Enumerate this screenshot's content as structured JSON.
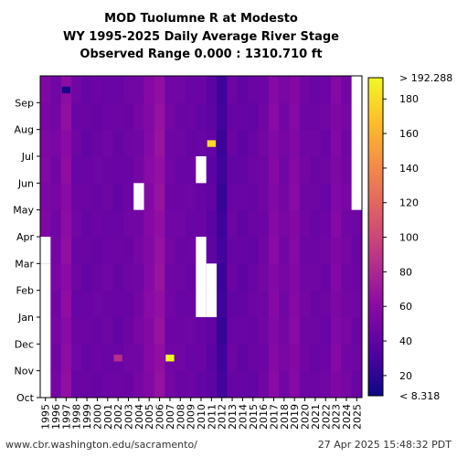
{
  "chart_data": {
    "type": "heatmap",
    "title_lines": [
      "MOD Tuolumne R at Modesto",
      "WY 1995-2025 Daily Average River Stage",
      "Observed Range 0.000 : 1310.710 ft"
    ],
    "x_categories": [
      "1995",
      "1996",
      "1997",
      "1998",
      "1999",
      "2000",
      "2001",
      "2002",
      "2003",
      "2004",
      "2005",
      "2006",
      "2007",
      "2008",
      "2009",
      "2010",
      "2011",
      "2012",
      "2013",
      "2014",
      "2015",
      "2016",
      "2017",
      "2018",
      "2019",
      "2020",
      "2021",
      "2022",
      "2023",
      "2024",
      "2025"
    ],
    "y_months": [
      "Oct",
      "Nov",
      "Dec",
      "Jan",
      "Feb",
      "Mar",
      "Apr",
      "May",
      "Jun",
      "Jul",
      "Aug",
      "Sep"
    ],
    "colorbar": {
      "range": [
        8.318,
        192.288
      ],
      "ticks": [
        20,
        40,
        60,
        80,
        100,
        120,
        140,
        160,
        180
      ],
      "max_label": "> 192.288",
      "min_label": "< 8.318",
      "colormap": "plasma"
    },
    "year_column_values": [
      54,
      50,
      62,
      46,
      44,
      45,
      46,
      44,
      46,
      50,
      58,
      66,
      48,
      46,
      45,
      44,
      40,
      26,
      44,
      42,
      44,
      48,
      58,
      50,
      58,
      48,
      46,
      46,
      56,
      50,
      46
    ],
    "notable_cells": [
      {
        "year": "2007",
        "month": "Nov",
        "value": 192
      },
      {
        "year": "2011",
        "month": "Jul",
        "value": 180
      },
      {
        "year": "2002",
        "month": "Nov",
        "value": 85
      },
      {
        "year": "1997",
        "month": "Sep",
        "value": 12
      }
    ],
    "missing_data": [
      {
        "year": "1995",
        "from": "Oct",
        "to": "Feb"
      },
      {
        "year": "1995",
        "from": "Mar",
        "to": "Mar"
      },
      {
        "year": "2004",
        "from": "May",
        "to": "May"
      },
      {
        "year": "2010",
        "from": "Jan",
        "to": "Mar"
      },
      {
        "year": "2010",
        "from": "Jun",
        "to": "Jun"
      },
      {
        "year": "2011",
        "from": "Jan",
        "to": "Feb"
      },
      {
        "year": "2025",
        "from": "May",
        "to": "Sep"
      }
    ]
  },
  "footer": {
    "source": "www.cbr.washington.edu/sacramento/",
    "timestamp": "27 Apr 2025 15:48:32 PDT"
  }
}
